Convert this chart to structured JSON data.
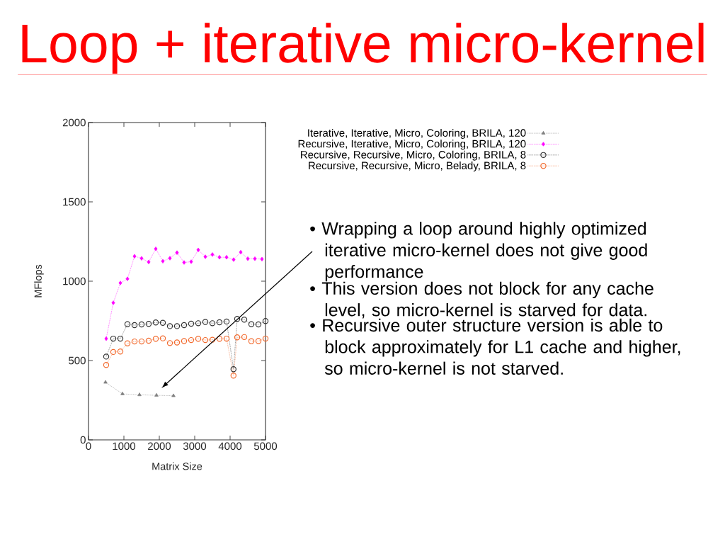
{
  "chart_data": {
    "type": "line",
    "title": "Loop + iterative micro-kernel",
    "xlabel": "Matrix Size",
    "ylabel": "MFlops",
    "xlim": [
      0,
      5000
    ],
    "ylim": [
      0,
      2000
    ],
    "xticks": [
      0,
      1000,
      2000,
      3000,
      4000,
      5000
    ],
    "yticks": [
      0,
      500,
      1000,
      1500,
      2000
    ],
    "legend": "top right",
    "line_style": "dotted",
    "series": [
      {
        "name": "Iterative, Iterative, Micro, Coloring, BRILA, 120",
        "color": "#808080",
        "marker": "triangle",
        "x": [
          480,
          960,
          1440,
          1920,
          2400
        ],
        "values": [
          363,
          290,
          284,
          281,
          278
        ]
      },
      {
        "name": "Recursive, Iterative, Micro, Coloring, BRILA, 120",
        "color": "#ff00ff",
        "marker": "diamond",
        "x": [
          500,
          700,
          900,
          1100,
          1300,
          1500,
          1700,
          1900,
          2100,
          2300,
          2500,
          2700,
          2900,
          3100,
          3300,
          3500,
          3700,
          3900,
          4100,
          4300,
          4500,
          4700,
          4900
        ],
        "values": [
          638,
          864,
          989,
          1015,
          1157,
          1144,
          1121,
          1204,
          1126,
          1145,
          1180,
          1118,
          1123,
          1197,
          1154,
          1168,
          1151,
          1151,
          1136,
          1183,
          1142,
          1142,
          1139
        ]
      },
      {
        "name": "Recursive, Recursive, Micro, Coloring, BRILA, 8",
        "color": "#333333",
        "marker": "circle",
        "x": [
          500,
          700,
          900,
          1100,
          1300,
          1500,
          1700,
          1900,
          2100,
          2300,
          2500,
          2700,
          2900,
          3100,
          3300,
          3500,
          3700,
          3900,
          4096,
          4200,
          4400,
          4600,
          4800,
          5000
        ],
        "values": [
          525,
          638,
          638,
          729,
          723,
          728,
          731,
          740,
          738,
          717,
          717,
          723,
          732,
          735,
          743,
          735,
          741,
          746,
          445,
          762,
          758,
          729,
          728,
          749
        ]
      },
      {
        "name": "Recursive, Recursive, Micro, Belady, BRILA, 8",
        "color": "#f26b2f",
        "marker": "circle",
        "x": [
          500,
          700,
          900,
          1100,
          1300,
          1500,
          1700,
          1900,
          2100,
          2300,
          2500,
          2700,
          2900,
          3100,
          3300,
          3500,
          3700,
          3900,
          4096,
          4200,
          4400,
          4600,
          4800,
          5000
        ],
        "values": [
          472,
          554,
          557,
          608,
          620,
          620,
          625,
          637,
          640,
          610,
          614,
          623,
          629,
          637,
          629,
          631,
          637,
          638,
          405,
          646,
          648,
          622,
          623,
          638
        ]
      }
    ],
    "annotations": [
      "• Wrapping a loop around highly optimized iterative micro-kernel does not give good performance",
      "• This version does not block for any cache level, so micro-kernel is starved for data.",
      "• Recursive outer structure version is able to block approximately for L1 cache and higher, so micro-kernel is not starved."
    ]
  }
}
